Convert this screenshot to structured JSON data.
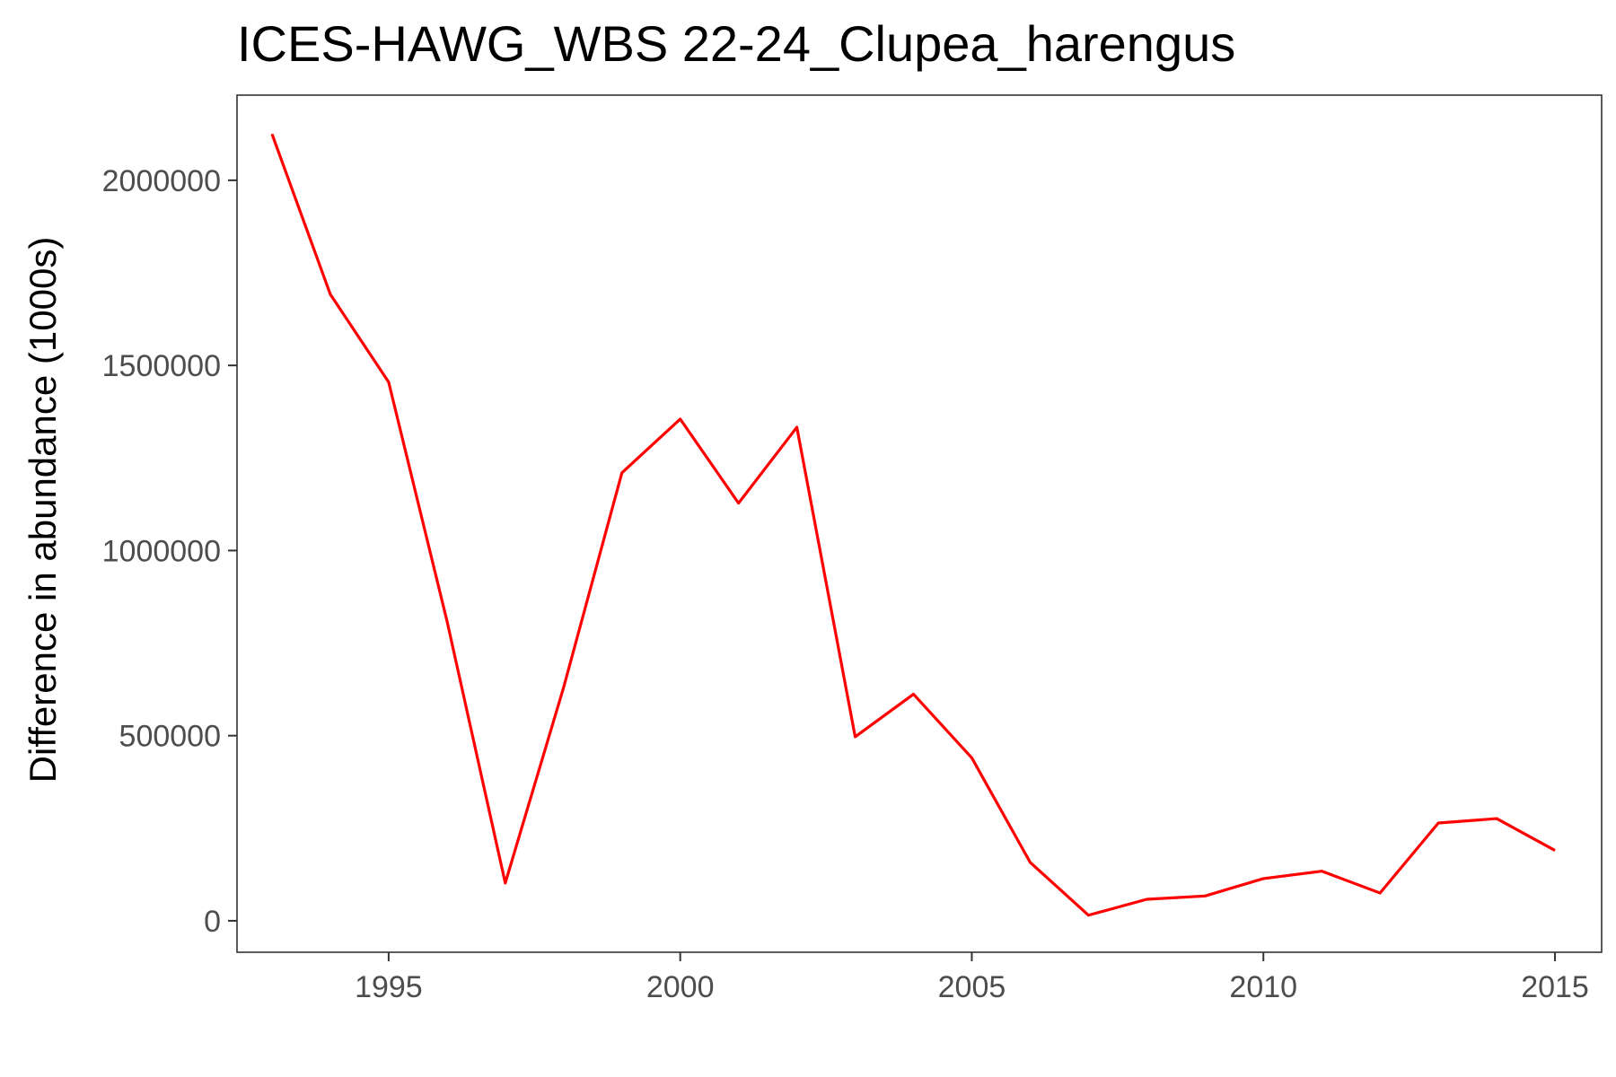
{
  "chart_data": {
    "type": "line",
    "title": "ICES-HAWG_WBS 22-24_Clupea_harengus",
    "xlabel": "",
    "ylabel": "Difference in abundance (1000s)",
    "xlim": [
      1992.4,
      2015.8
    ],
    "ylim": [
      -85000,
      2230000
    ],
    "x_ticks": [
      1995,
      2000,
      2005,
      2010,
      2015
    ],
    "x_tick_labels": [
      "1995",
      "2000",
      "2005",
      "2010",
      "2015"
    ],
    "y_ticks": [
      0,
      500000,
      1000000,
      1500000,
      2000000
    ],
    "y_tick_labels": [
      "0",
      "500000",
      "1000000",
      "1500000",
      "2000000"
    ],
    "grid": false,
    "legend": "none",
    "series": [
      {
        "color": "#ff0000",
        "x": [
          1993,
          1994,
          1995,
          1996,
          1997,
          1998,
          1999,
          2000,
          2001,
          2002,
          2003,
          2004,
          2005,
          2006,
          2007,
          2008,
          2009,
          2010,
          2011,
          2012,
          2013,
          2014,
          2015
        ],
        "y": [
          2125000,
          1692000,
          1455000,
          810000,
          102000,
          630000,
          1210000,
          1355000,
          1128000,
          1333000,
          497000,
          612000,
          440000,
          158000,
          15000,
          58000,
          67000,
          114000,
          134000,
          75000,
          264000,
          276000,
          190000
        ]
      }
    ]
  }
}
